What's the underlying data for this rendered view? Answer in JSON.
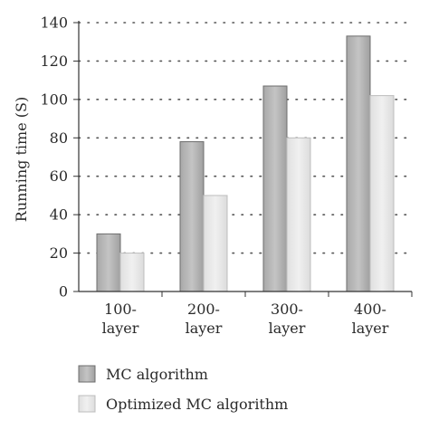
{
  "chart_data": {
    "type": "bar",
    "title": "",
    "xlabel": "",
    "ylabel": "Running time (S)",
    "ylim": [
      0,
      140
    ],
    "yticks": [
      0,
      20,
      40,
      60,
      80,
      100,
      120,
      140
    ],
    "categories": [
      [
        "100-",
        "layer"
      ],
      [
        "200-",
        "layer"
      ],
      [
        "300-",
        "layer"
      ],
      [
        "400-",
        "layer"
      ]
    ],
    "series": [
      {
        "name": "MC algorithm",
        "values": [
          30,
          78,
          107,
          133
        ],
        "color": "#b4b4b4"
      },
      {
        "name": "Optimized MC algorithm",
        "values": [
          20,
          50,
          80,
          102
        ],
        "color": "#e6e6e6"
      }
    ],
    "grid": "horizontal dotted",
    "legend": "bottom"
  }
}
